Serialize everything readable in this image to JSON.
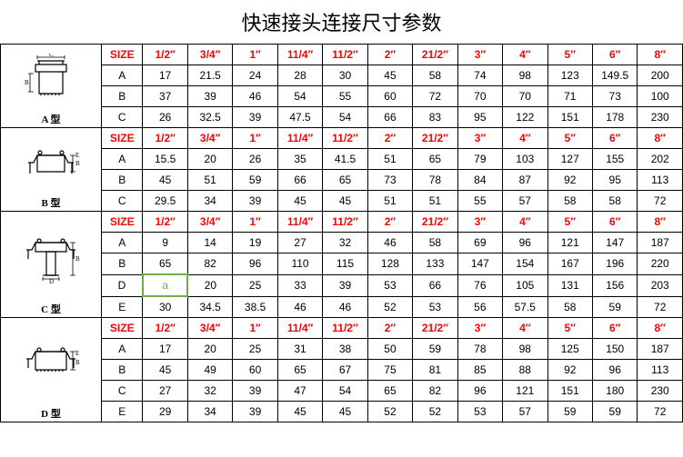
{
  "title": "快速接头连接尺寸参数",
  "size_header": "SIZE",
  "sizes": [
    "1/2″",
    "3/4″",
    "1″",
    "11/4″",
    "11/2″",
    "2″",
    "21/2″",
    "3″",
    "4″",
    "5″",
    "6″",
    "8″"
  ],
  "header_color": "#ff0000",
  "highlight_color": "#70ad47",
  "sections": [
    {
      "label": "A 型",
      "rows": [
        {
          "k": "A",
          "v": [
            "17",
            "21.5",
            "24",
            "28",
            "30",
            "45",
            "58",
            "74",
            "98",
            "123",
            "149.5",
            "200"
          ]
        },
        {
          "k": "B",
          "v": [
            "37",
            "39",
            "46",
            "54",
            "55",
            "60",
            "72",
            "70",
            "70",
            "71",
            "73",
            "100"
          ]
        },
        {
          "k": "C",
          "v": [
            "26",
            "32.5",
            "39",
            "47.5",
            "54",
            "66",
            "83",
            "95",
            "122",
            "151",
            "178",
            "230"
          ]
        }
      ]
    },
    {
      "label": "B 型",
      "rows": [
        {
          "k": "A",
          "v": [
            "15.5",
            "20",
            "26",
            "35",
            "41.5",
            "51",
            "65",
            "79",
            "103",
            "127",
            "155",
            "202"
          ]
        },
        {
          "k": "B",
          "v": [
            "45",
            "51",
            "59",
            "66",
            "65",
            "73",
            "78",
            "84",
            "87",
            "92",
            "95",
            "113"
          ]
        },
        {
          "k": "C",
          "v": [
            "29.5",
            "34",
            "39",
            "45",
            "45",
            "51",
            "51",
            "55",
            "57",
            "58",
            "58",
            "72"
          ]
        }
      ]
    },
    {
      "label": "C 型",
      "rows": [
        {
          "k": "A",
          "v": [
            "9",
            "14",
            "19",
            "27",
            "32",
            "46",
            "58",
            "69",
            "96",
            "121",
            "147",
            "187"
          ]
        },
        {
          "k": "B",
          "v": [
            "65",
            "82",
            "96",
            "110",
            "115",
            "128",
            "133",
            "147",
            "154",
            "167",
            "196",
            "220"
          ]
        },
        {
          "k": "D",
          "v": [
            "a",
            "20",
            "25",
            "33",
            "39",
            "53",
            "66",
            "76",
            "105",
            "131",
            "156",
            "203"
          ],
          "highlight_idx": 0
        },
        {
          "k": "E",
          "v": [
            "30",
            "34.5",
            "38.5",
            "46",
            "46",
            "52",
            "53",
            "56",
            "57.5",
            "58",
            "59",
            "72"
          ]
        }
      ]
    },
    {
      "label": "D 型",
      "rows": [
        {
          "k": "A",
          "v": [
            "17",
            "20",
            "25",
            "31",
            "38",
            "50",
            "59",
            "78",
            "98",
            "125",
            "150",
            "187"
          ]
        },
        {
          "k": "B",
          "v": [
            "45",
            "49",
            "60",
            "65",
            "67",
            "75",
            "81",
            "85",
            "88",
            "92",
            "96",
            "113"
          ]
        },
        {
          "k": "C",
          "v": [
            "27",
            "32",
            "39",
            "47",
            "54",
            "65",
            "82",
            "96",
            "121",
            "151",
            "180",
            "230"
          ]
        },
        {
          "k": "E",
          "v": [
            "29",
            "34",
            "39",
            "45",
            "45",
            "52",
            "52",
            "53",
            "57",
            "59",
            "59",
            "72"
          ]
        }
      ]
    }
  ]
}
